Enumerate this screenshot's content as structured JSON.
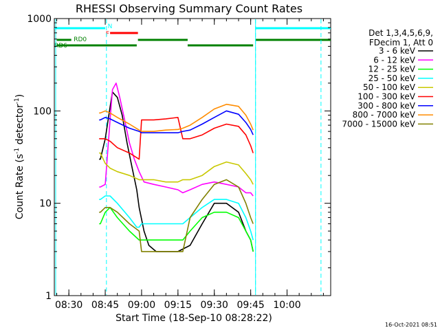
{
  "chart_data": {
    "type": "line",
    "title": "RHESSI Observing Summary Count Rates",
    "xlabel": "Start Time (18-Sep-10 08:28:22)",
    "ylabel_main": "Count Rate (s",
    "ylabel_sup1": "-1",
    "ylabel_mid": " detector",
    "ylabel_sup2": "-1",
    "ylabel_end": ")",
    "yscale": "log",
    "ylim": [
      1,
      1000
    ],
    "xlim_minutes": [
      -6,
      108
    ],
    "x_ticks": [
      {
        "label": "08:30",
        "m": 0
      },
      {
        "label": "08:45",
        "m": 15
      },
      {
        "label": "09:00",
        "m": 30
      },
      {
        "label": "09:15",
        "m": 45
      },
      {
        "label": "09:30",
        "m": 60
      },
      {
        "label": "09:45",
        "m": 75
      },
      {
        "label": "10:00",
        "m": 90
      }
    ],
    "y_ticks": [
      {
        "label": "1",
        "v": 1
      },
      {
        "label": "10",
        "v": 10
      },
      {
        "label": "100",
        "v": 100
      },
      {
        "label": "1000",
        "v": 1000
      }
    ],
    "legend_header": [
      "Det 1,3,4,5,6,9,",
      "FDecim 1, Att 0"
    ],
    "legend_position": "right",
    "series": [
      {
        "name": "3 - 6 keV",
        "color": "#000000",
        "x": [
          12.5,
          13,
          15,
          17,
          18,
          20,
          22,
          24,
          26,
          28,
          29,
          31,
          33,
          36,
          40,
          45,
          50,
          55,
          60,
          65,
          70,
          73,
          75,
          76
        ],
        "y": [
          30,
          30,
          50,
          110,
          160,
          140,
          90,
          45,
          25,
          14,
          9,
          5,
          3.5,
          3,
          3,
          3,
          3.5,
          6,
          10,
          10,
          8,
          5,
          4,
          3
        ]
      },
      {
        "name": "6 - 12 keV",
        "color": "#ff00ff",
        "x": [
          12.5,
          13,
          15,
          17,
          18,
          19.5,
          21,
          23,
          25,
          27,
          29,
          31,
          35,
          40,
          45,
          47,
          50,
          55,
          60,
          65,
          70,
          73,
          75,
          76
        ],
        "y": [
          15,
          15,
          16,
          80,
          170,
          200,
          140,
          80,
          45,
          30,
          22,
          17,
          16,
          15,
          14,
          13,
          14,
          16,
          17,
          16,
          15,
          13,
          13,
          12
        ]
      },
      {
        "name": "12 - 25 keV",
        "color": "#00ff00",
        "x": [
          12.5,
          13,
          15,
          17,
          20,
          25,
          29,
          30,
          35,
          40,
          45,
          47,
          50,
          55,
          60,
          65,
          70,
          73,
          75,
          76
        ],
        "y": [
          6,
          6,
          8,
          9,
          7,
          5,
          4,
          4,
          4,
          4,
          4,
          4,
          5,
          7,
          8,
          8,
          7,
          5,
          4,
          3
        ]
      },
      {
        "name": "25 - 50 keV",
        "color": "#00ffff",
        "x": [
          12.5,
          13,
          15,
          17,
          20,
          25,
          28,
          29,
          30,
          35,
          40,
          45,
          47,
          50,
          55,
          60,
          65,
          70,
          73,
          75,
          76
        ],
        "y": [
          11,
          11,
          12,
          12,
          10,
          7,
          5.5,
          5.5,
          6,
          6,
          6,
          6,
          6,
          7,
          9,
          11,
          11,
          10,
          7,
          5,
          4
        ]
      },
      {
        "name": "50 - 100 keV",
        "color": "#c8c800",
        "x": [
          12.5,
          13,
          15,
          17,
          20,
          25,
          29,
          30,
          35,
          40,
          45,
          47,
          50,
          55,
          60,
          65,
          70,
          73,
          75,
          76
        ],
        "y": [
          35,
          35,
          27,
          24,
          22,
          20,
          18,
          18,
          18,
          17,
          17,
          18,
          18,
          20,
          25,
          28,
          26,
          21,
          18,
          16
        ]
      },
      {
        "name": "100 - 300 keV",
        "color": "#ff0000",
        "x": [
          12.5,
          13,
          15,
          17,
          20,
          25,
          29,
          30,
          35,
          40,
          45,
          47,
          50,
          55,
          60,
          65,
          70,
          73,
          75,
          76
        ],
        "y": [
          50,
          50,
          50,
          47,
          40,
          35,
          30,
          80,
          80,
          82,
          85,
          50,
          50,
          55,
          65,
          72,
          68,
          55,
          42,
          35
        ]
      },
      {
        "name": "300 - 800 keV",
        "color": "#0000ff",
        "x": [
          12.5,
          13,
          15,
          17,
          20,
          25,
          29,
          30,
          35,
          40,
          45,
          47,
          50,
          55,
          60,
          65,
          70,
          73,
          75,
          76
        ],
        "y": [
          80,
          80,
          85,
          82,
          75,
          65,
          60,
          58,
          58,
          58,
          58,
          60,
          62,
          72,
          85,
          100,
          92,
          75,
          63,
          55
        ]
      },
      {
        "name": "800 - 7000 keV",
        "color": "#ff8c00",
        "x": [
          12.5,
          13,
          15,
          17,
          20,
          25,
          29,
          30,
          35,
          40,
          45,
          47,
          50,
          55,
          60,
          65,
          70,
          73,
          75,
          76
        ],
        "y": [
          95,
          95,
          100,
          95,
          85,
          72,
          62,
          60,
          60,
          62,
          63,
          65,
          70,
          85,
          105,
          118,
          112,
          90,
          72,
          62
        ]
      },
      {
        "name": "7000 - 15000 keV",
        "color": "#808000",
        "x": [
          12.5,
          13,
          15,
          17,
          20,
          25,
          29,
          30,
          35,
          40,
          45,
          47,
          50,
          55,
          60,
          65,
          70,
          73,
          75,
          76
        ],
        "y": [
          8,
          8,
          9,
          9,
          8,
          6,
          5,
          3,
          3,
          3,
          3,
          3,
          7,
          11,
          16,
          18,
          15,
          10,
          7,
          6
        ]
      }
    ],
    "flags": [
      {
        "name": "N",
        "color": "#00ffff",
        "label_m": 16,
        "label_color": "#00ffff",
        "segments": [
          [
            -6,
            15
          ],
          [
            77,
            108
          ]
        ]
      },
      {
        "name": "F",
        "color": "#ff0000",
        "label_m": 15.2,
        "label_color": "#ff0000",
        "segments": [
          [
            17,
            28.5
          ]
        ]
      },
      {
        "name": "RD0",
        "color": "#008000",
        "label_m": 2,
        "label_color": "#008000",
        "segments": [
          [
            -5,
            1
          ],
          [
            28.5,
            49
          ],
          [
            77,
            108
          ]
        ]
      },
      {
        "name": "RD6",
        "color": "#008000",
        "label_m": -6,
        "label_color": "#008000",
        "segments": [
          [
            -5,
            28
          ],
          [
            49,
            76
          ]
        ]
      }
    ],
    "vertical_lines": [
      {
        "m": 15.5,
        "color": "#00ffff",
        "style": "dashed"
      },
      {
        "m": 77,
        "color": "#00ffff",
        "style": "dashed"
      },
      {
        "m": 104,
        "color": "#00ffff",
        "style": "dashed"
      }
    ],
    "timestamp": "16-Oct-2021 08:51"
  }
}
